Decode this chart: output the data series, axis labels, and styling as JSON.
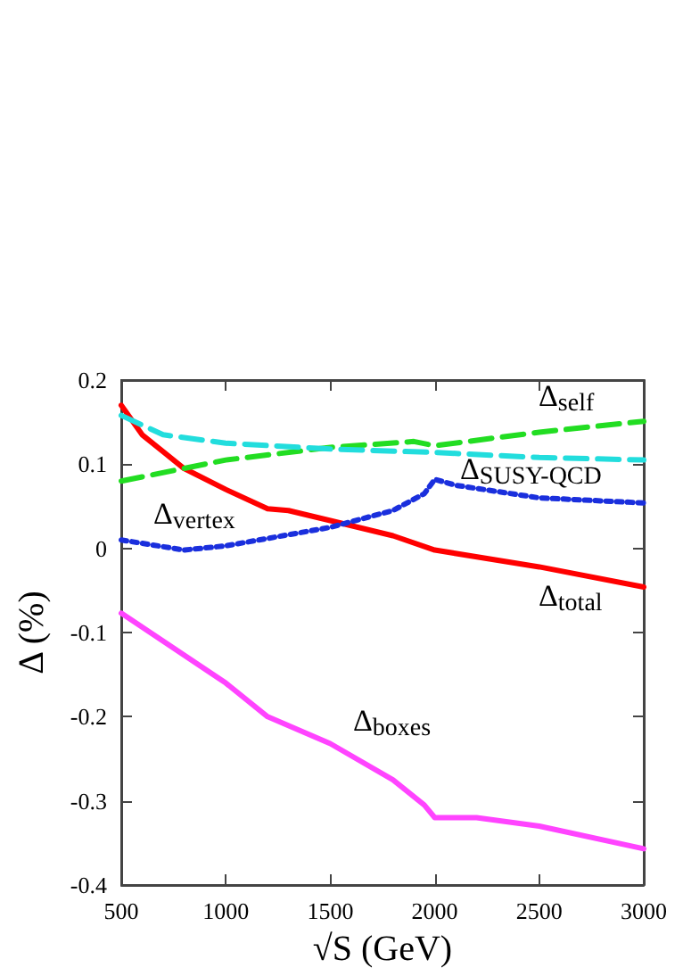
{
  "chart_data": {
    "type": "line",
    "xlabel": "√S (GeV)",
    "ylabel": "Δ (%)",
    "xlim": [
      500,
      3000
    ],
    "xticks": [
      500,
      1000,
      1500,
      2000,
      2500,
      3000
    ],
    "ylim": [
      -0.4,
      0.2
    ],
    "yticks": [
      -0.4,
      -0.3,
      -0.2,
      -0.1,
      0,
      0.1,
      0.2
    ],
    "grid": false,
    "marker": "none",
    "series": [
      {
        "color": "#ff0000",
        "line_style": "solid",
        "x": [
          500,
          600,
          800,
          1000,
          1200,
          1300,
          1500,
          1800,
          2000,
          2500,
          3000
        ],
        "values": [
          0.17,
          0.135,
          0.095,
          0.07,
          0.047,
          0.045,
          0.033,
          0.015,
          -0.002,
          -0.022,
          -0.046
        ]
      },
      {
        "color": "#22dd22",
        "line_style": "dashed",
        "x": [
          500,
          1000,
          1500,
          1900,
          2000,
          2500,
          3000
        ],
        "values": [
          0.08,
          0.105,
          0.12,
          0.127,
          0.122,
          0.138,
          0.151
        ]
      },
      {
        "color": "#22dddd",
        "line_style": "dashed",
        "x": [
          500,
          700,
          1000,
          1500,
          2000,
          2500,
          3000
        ],
        "values": [
          0.158,
          0.135,
          0.125,
          0.118,
          0.114,
          0.108,
          0.105
        ]
      },
      {
        "color": "#1a2fdd",
        "line_style": "dotted",
        "x": [
          500,
          800,
          1000,
          1500,
          1800,
          1950,
          2000,
          2100,
          2500,
          3000
        ],
        "values": [
          0.01,
          -0.002,
          0.003,
          0.025,
          0.045,
          0.065,
          0.082,
          0.075,
          0.06,
          0.054
        ]
      },
      {
        "color": "#ff44ff",
        "line_style": "solid",
        "x": [
          500,
          1000,
          1200,
          1500,
          1800,
          1950,
          2000,
          2200,
          2500,
          3000
        ],
        "values": [
          -0.077,
          -0.16,
          -0.2,
          -0.232,
          -0.275,
          -0.305,
          -0.32,
          -0.32,
          -0.33,
          -0.357
        ]
      }
    ],
    "annotations": [
      "Δ$_{self}$",
      "Δ$_{SUSY-QCD}$",
      "Δ$_{vertex}$",
      "Δ$_{total}$",
      "Δ$_{boxes}$"
    ]
  }
}
